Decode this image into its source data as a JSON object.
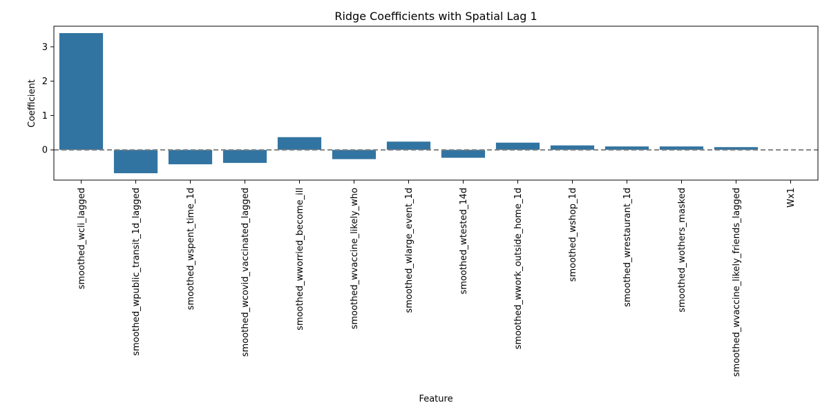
{
  "chart_data": {
    "type": "bar",
    "title": "Ridge Coefficients with Spatial Lag 1",
    "xlabel": "Feature",
    "ylabel": "Coefficient",
    "categories": [
      "smoothed_wcli_lagged",
      "smoothed_wpublic_transit_1d_lagged",
      "smoothed_wspent_time_1d",
      "smoothed_wcovid_vaccinated_lagged",
      "smoothed_wworried_become_ill",
      "smoothed_wvaccine_likely_who",
      "smoothed_wlarge_event_1d",
      "smoothed_wtested_14d",
      "smoothed_wwork_outside_home_1d",
      "smoothed_wshop_1d",
      "smoothed_wrestaurant_1d",
      "smoothed_wothers_masked",
      "smoothed_wvaccine_likely_friends_lagged",
      "Wx1"
    ],
    "values": [
      3.4,
      -0.68,
      -0.42,
      -0.38,
      0.37,
      -0.27,
      0.24,
      -0.23,
      0.21,
      0.13,
      0.1,
      0.1,
      0.08,
      0.0
    ],
    "ylim": [
      -0.88,
      3.6
    ],
    "yticks": [
      0,
      1,
      2,
      3
    ],
    "reference_line": {
      "y": 0,
      "style": "dashed",
      "color": "#808080"
    },
    "bar_color": "#3274a1",
    "grid": false,
    "legend": "none"
  }
}
